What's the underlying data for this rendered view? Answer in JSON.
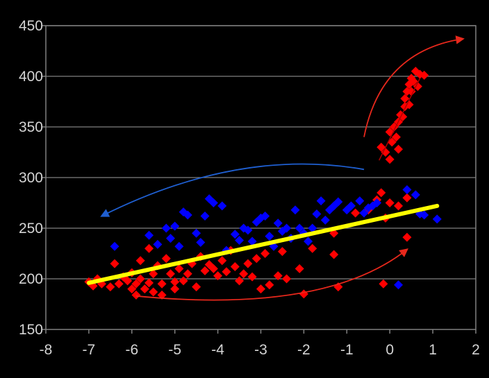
{
  "chart_data": {
    "type": "scatter",
    "title": "",
    "xlabel": "",
    "ylabel": "",
    "xlim": [
      -8,
      2
    ],
    "ylim": [
      150,
      450
    ],
    "x_ticks": [
      "-8",
      "-7",
      "-6",
      "-5",
      "-4",
      "-3",
      "-2",
      "-1",
      "0",
      "1",
      "2"
    ],
    "y_ticks": [
      "150",
      "200",
      "250",
      "300",
      "350",
      "400",
      "450"
    ],
    "grid": "horizontal",
    "legend": "none",
    "colors": {
      "background": "#000000",
      "plot_border": "#808080",
      "grid": "#808080",
      "red_series": "#ff0000",
      "blue_series": "#0000ff",
      "trend_line": "#ffff00",
      "red_arrow": "#e8281c",
      "blue_arrow": "#1f5fd1",
      "tick_text": "#d4d4d4"
    },
    "series": [
      {
        "color": "#ff0000",
        "marker": "diamond",
        "points": [
          [
            -7.0,
            197
          ],
          [
            -6.9,
            193
          ],
          [
            -6.8,
            200
          ],
          [
            -6.7,
            195
          ],
          [
            -6.5,
            192
          ],
          [
            -6.4,
            215
          ],
          [
            -6.3,
            195
          ],
          [
            -6.2,
            202
          ],
          [
            -6.1,
            198
          ],
          [
            -6.0,
            206
          ],
          [
            -6.0,
            190
          ],
          [
            -5.9,
            184
          ],
          [
            -5.9,
            195
          ],
          [
            -5.8,
            218
          ],
          [
            -5.8,
            200
          ],
          [
            -5.7,
            190
          ],
          [
            -5.6,
            230
          ],
          [
            -5.6,
            196
          ],
          [
            -5.5,
            205
          ],
          [
            -5.5,
            187
          ],
          [
            -5.4,
            213
          ],
          [
            -5.3,
            195
          ],
          [
            -5.3,
            184
          ],
          [
            -5.2,
            220
          ],
          [
            -5.1,
            205
          ],
          [
            -5.0,
            197
          ],
          [
            -5.0,
            190
          ],
          [
            -4.9,
            210
          ],
          [
            -4.8,
            198
          ],
          [
            -4.7,
            205
          ],
          [
            -4.6,
            215
          ],
          [
            -4.5,
            192
          ],
          [
            -4.4,
            222
          ],
          [
            -4.3,
            208
          ],
          [
            -4.2,
            214
          ],
          [
            -4.1,
            210
          ],
          [
            -4.0,
            203
          ],
          [
            -3.9,
            218
          ],
          [
            -3.8,
            207
          ],
          [
            -3.7,
            228
          ],
          [
            -3.6,
            212
          ],
          [
            -3.5,
            198
          ],
          [
            -3.4,
            205
          ],
          [
            -3.3,
            215
          ],
          [
            -3.2,
            202
          ],
          [
            -3.1,
            220
          ],
          [
            -3.0,
            190
          ],
          [
            -2.9,
            225
          ],
          [
            -2.8,
            194
          ],
          [
            -2.6,
            203
          ],
          [
            -2.5,
            227
          ],
          [
            -2.4,
            200
          ],
          [
            -2.1,
            210
          ],
          [
            -2.0,
            185
          ],
          [
            -1.8,
            230
          ],
          [
            -1.3,
            245
          ],
          [
            -1.3,
            224
          ],
          [
            -1.2,
            192
          ],
          [
            -0.8,
            265
          ],
          [
            -0.5,
            268
          ],
          [
            -0.3,
            278
          ],
          [
            -0.2,
            285
          ],
          [
            -0.1,
            260
          ],
          [
            0.0,
            275
          ],
          [
            0.2,
            272
          ],
          [
            -0.15,
            195
          ],
          [
            0.4,
            280
          ],
          [
            0.4,
            241
          ],
          [
            -0.2,
            330
          ],
          [
            -0.1,
            325
          ],
          [
            0.0,
            318
          ],
          [
            0.0,
            345
          ],
          [
            0.05,
            335
          ],
          [
            0.1,
            350
          ],
          [
            0.15,
            340
          ],
          [
            0.2,
            355
          ],
          [
            0.25,
            362
          ],
          [
            0.3,
            360
          ],
          [
            0.35,
            370
          ],
          [
            0.35,
            378
          ],
          [
            0.4,
            385
          ],
          [
            0.45,
            372
          ],
          [
            0.45,
            392
          ],
          [
            0.5,
            385
          ],
          [
            0.5,
            398
          ],
          [
            0.55,
            395
          ],
          [
            0.6,
            405
          ],
          [
            0.65,
            390
          ],
          [
            0.7,
            402
          ],
          [
            0.8,
            401
          ],
          [
            0.2,
            328
          ]
        ]
      },
      {
        "color": "#0000ff",
        "marker": "diamond",
        "points": [
          [
            -6.4,
            232
          ],
          [
            -5.6,
            243
          ],
          [
            -5.4,
            234
          ],
          [
            -5.2,
            250
          ],
          [
            -5.1,
            240
          ],
          [
            -5.0,
            252
          ],
          [
            -4.9,
            232
          ],
          [
            -4.8,
            266
          ],
          [
            -4.7,
            263
          ],
          [
            -4.5,
            245
          ],
          [
            -4.4,
            236
          ],
          [
            -4.3,
            262
          ],
          [
            -4.2,
            279
          ],
          [
            -4.1,
            275
          ],
          [
            -3.9,
            272
          ],
          [
            -3.8,
            228
          ],
          [
            -3.6,
            244
          ],
          [
            -3.5,
            238
          ],
          [
            -3.4,
            250
          ],
          [
            -3.3,
            248
          ],
          [
            -3.2,
            237
          ],
          [
            -3.1,
            256
          ],
          [
            -3.0,
            260
          ],
          [
            -2.9,
            262
          ],
          [
            -2.8,
            242
          ],
          [
            -2.7,
            232
          ],
          [
            -2.6,
            255
          ],
          [
            -2.5,
            247
          ],
          [
            -2.4,
            250
          ],
          [
            -2.3,
            240
          ],
          [
            -2.2,
            268
          ],
          [
            -2.1,
            250
          ],
          [
            -2.0,
            245
          ],
          [
            -1.9,
            237
          ],
          [
            -1.8,
            250
          ],
          [
            -1.7,
            264
          ],
          [
            -1.6,
            277
          ],
          [
            -1.5,
            258
          ],
          [
            -1.4,
            268
          ],
          [
            -1.3,
            272
          ],
          [
            -1.2,
            276
          ],
          [
            -1.0,
            268
          ],
          [
            -0.9,
            272
          ],
          [
            -0.7,
            277
          ],
          [
            -0.6,
            265
          ],
          [
            -0.5,
            270
          ],
          [
            -0.4,
            272
          ],
          [
            -0.3,
            275
          ],
          [
            0.2,
            194
          ],
          [
            0.4,
            288
          ],
          [
            0.6,
            283
          ],
          [
            0.7,
            264
          ],
          [
            0.8,
            263
          ],
          [
            1.1,
            259
          ]
        ]
      }
    ],
    "trend_line": {
      "x": [
        -7.0,
        1.1
      ],
      "y": [
        196,
        272
      ]
    },
    "annotations": [
      {
        "type": "arrow",
        "color": "#e8281c",
        "from": [
          -0.6,
          340
        ],
        "control": [
          -0.2,
          425
        ],
        "to": [
          1.7,
          437
        ]
      },
      {
        "type": "arrow",
        "color": "#1f5fd1",
        "from": [
          -0.6,
          308
        ],
        "control": [
          -3.5,
          330
        ],
        "to": [
          -6.7,
          262
        ]
      },
      {
        "type": "arrow",
        "color": "#e8281c",
        "from": [
          -5.9,
          183
        ],
        "control": [
          -1.5,
          165
        ],
        "to": [
          0.4,
          229
        ]
      },
      {
        "type": "line",
        "color": "#b00000",
        "from": [
          -0.25,
          317
        ],
        "to": [
          0.7,
          398
        ]
      }
    ]
  }
}
